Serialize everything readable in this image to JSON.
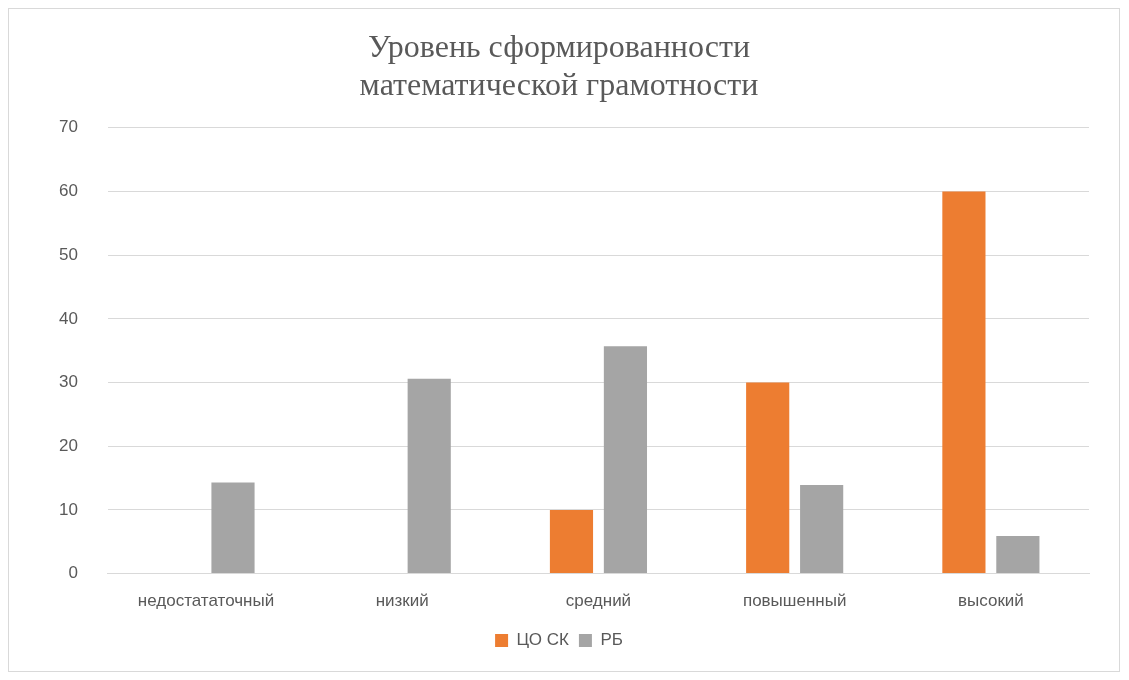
{
  "chart_data": {
    "type": "bar",
    "title": "Уровень сформированности\nматематической грамотности",
    "categories": [
      "недостататочный",
      "низкий",
      "средний",
      "повышенный",
      "высокий"
    ],
    "series": [
      {
        "name": "ЦО СК",
        "color": "#ed7d31",
        "values": [
          0,
          0,
          10,
          30,
          60
        ]
      },
      {
        "name": "РБ",
        "color": "#a5a5a5",
        "values": [
          14.3,
          30.6,
          35.7,
          13.9,
          5.9
        ]
      }
    ],
    "ylim": [
      0,
      70
    ],
    "yticks": [
      0,
      10,
      20,
      30,
      40,
      50,
      60,
      70
    ],
    "grid": "y",
    "legend": "bottom"
  }
}
